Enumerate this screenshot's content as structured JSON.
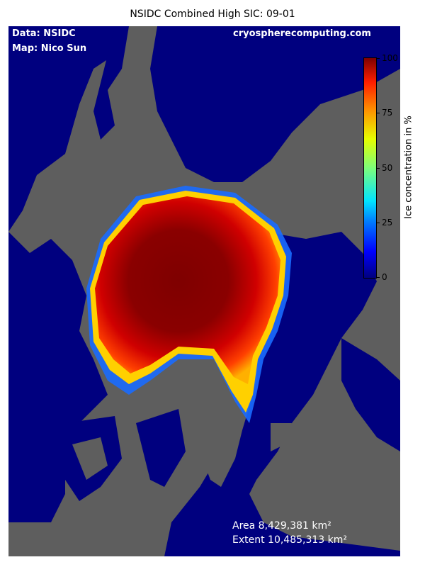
{
  "title": "NSIDC Combined High SIC: 09-01",
  "credits": {
    "data": "Data: NSIDC",
    "map": "Map: Nico Sun",
    "website": "cryospherecomputing.com"
  },
  "colorbar": {
    "label": "Ice concentration in %",
    "ticks": [
      "0",
      "25",
      "50",
      "75",
      "100"
    ]
  },
  "stats": {
    "area": "Area 8,429,381 km²",
    "extent": "Extent 10,485,313 km²"
  },
  "colors": {
    "ocean": "#00007f",
    "land": "#5e5e5e",
    "ice_high": "#7f0000"
  }
}
